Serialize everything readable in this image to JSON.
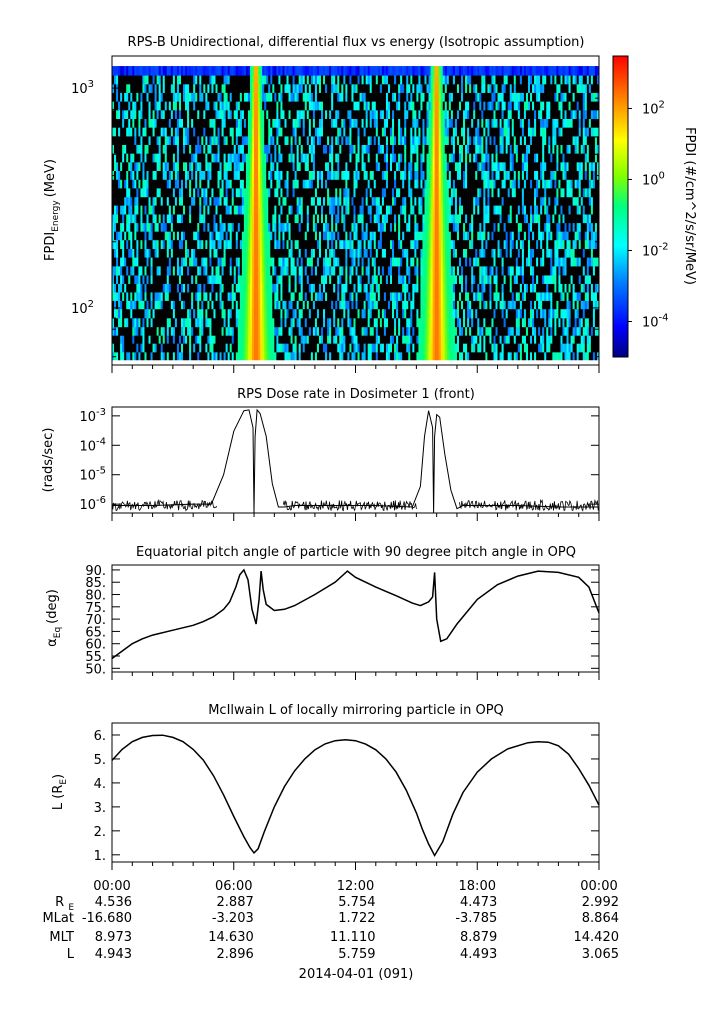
{
  "figure": {
    "date_label": "2014-04-01 (091)",
    "ephemeris": {
      "row_labels": [
        "R_E",
        "MLat",
        "MLT",
        "L"
      ],
      "columns": [
        {
          "time": "00:00",
          "values": [
            "4.536",
            "-16.680",
            "8.973",
            "4.943"
          ]
        },
        {
          "time": "06:00",
          "values": [
            "2.887",
            "-3.203",
            "14.630",
            "2.896"
          ]
        },
        {
          "time": "12:00",
          "values": [
            "5.754",
            "1.722",
            "11.110",
            "5.759"
          ]
        },
        {
          "time": "18:00",
          "values": [
            "4.473",
            "-3.785",
            "8.879",
            "4.493"
          ]
        },
        {
          "time": "00:00",
          "values": [
            "2.992",
            "8.864",
            "14.420",
            "3.065"
          ]
        }
      ]
    }
  },
  "chart_data": [
    {
      "type": "heatmap",
      "title": "RPS-B  Unidirectional, differential flux vs energy (Isotropic assumption)",
      "ylabel": "FPDI_Energy (MeV)",
      "ylabel_main": "FPDI",
      "ylabel_sub": "Energy",
      "ylabel_unit": "(MeV)",
      "x_range_hours": [
        0,
        24
      ],
      "y_range": [
        55,
        1400
      ],
      "y_scale": "log",
      "y_ticks": [
        {
          "value": 100,
          "label": "10",
          "exp": "2"
        },
        {
          "value": 1000,
          "label": "10",
          "exp": "3"
        }
      ],
      "energy_bins_mev": [
        58,
        63,
        69,
        75,
        82,
        90,
        99,
        108,
        118,
        129,
        141,
        155,
        170,
        186,
        204,
        223,
        244,
        267,
        293,
        320,
        351,
        384,
        421,
        461,
        505,
        553,
        605,
        663,
        726,
        795,
        871,
        954,
        1044,
        1144,
        1260
      ],
      "colorbar": {
        "label": "FPDI (#/cm^2/s/sr/MeV)",
        "scale": "log",
        "range": [
          1e-05,
          3000
        ],
        "ticks": [
          {
            "value": 0.0001,
            "label": "10",
            "exp": "-4"
          },
          {
            "value": 0.01,
            "label": "10",
            "exp": "-2"
          },
          {
            "value": 1,
            "label": "10",
            "exp": "0"
          },
          {
            "value": 100,
            "label": "10",
            "exp": "2"
          }
        ]
      },
      "features": [
        {
          "name": "belt-pass-1",
          "center_hours": 7.1,
          "flux_peak": 300
        },
        {
          "name": "belt-pass-2",
          "center_hours": 16.0,
          "flux_peak": 300
        }
      ],
      "background_flux": 0.01,
      "grid": false
    },
    {
      "type": "line",
      "title": "RPS  Dose rate in Dosimeter 1 (front)",
      "ylabel": "(rads/sec)",
      "y_scale": "log",
      "y_range": [
        5e-07,
        0.002
      ],
      "x_range_hours": [
        0,
        24
      ],
      "y_ticks": [
        {
          "value": 1e-06,
          "label": "10",
          "exp": "-6"
        },
        {
          "value": 1e-05,
          "label": "10",
          "exp": "-5"
        },
        {
          "value": 0.0001,
          "label": "10",
          "exp": "-4"
        },
        {
          "value": 0.001,
          "label": "10",
          "exp": "-3"
        }
      ],
      "series": [
        {
          "x": [
            0,
            2,
            4,
            4.9,
            5.5,
            6.0,
            6.5,
            6.75,
            6.95,
            7.0,
            7.05,
            7.15,
            7.3,
            7.6,
            7.9,
            8.2,
            8.5,
            9,
            11,
            13,
            14.8,
            15.2,
            15.4,
            15.6,
            15.8,
            15.85,
            15.9,
            16.0,
            16.15,
            16.4,
            16.7,
            17.0,
            17.3,
            18,
            20,
            22,
            24
          ],
          "y": [
            9e-07,
            9e-07,
            1e-06,
            1e-06,
            1e-05,
            0.0003,
            0.0015,
            0.0016,
            0.0004,
            5e-07,
            0.0002,
            0.0016,
            0.0012,
            0.0002,
            5e-06,
            8e-07,
            8e-07,
            9e-07,
            9e-07,
            9e-07,
            8e-07,
            4e-06,
            0.0002,
            0.0015,
            0.0004,
            5e-07,
            0.0002,
            0.0011,
            0.0009,
            5e-05,
            3e-06,
            7e-07,
            9e-07,
            9e-07,
            9e-07,
            8e-07,
            8e-07
          ]
        }
      ],
      "grid": false
    },
    {
      "type": "line",
      "title": "Equatorial pitch angle of particle with 90 degree pitch angle in OPQ",
      "ylabel": "α_Eq (deg)",
      "ylabel_main": "α",
      "ylabel_sub": "Eq",
      "ylabel_unit": "(deg)",
      "y_range": [
        48.5,
        92
      ],
      "x_range_hours": [
        0,
        24
      ],
      "y_ticks": [
        50,
        55,
        60,
        65,
        70,
        75,
        80,
        85,
        90
      ],
      "tick_labels": [
        "50.",
        "55.",
        "60.",
        "65.",
        "70.",
        "75.",
        "80.",
        "85.",
        "90."
      ],
      "series": [
        {
          "x": [
            0,
            0.5,
            1,
            1.5,
            2,
            3,
            4,
            4.5,
            5,
            5.5,
            5.8,
            6.1,
            6.3,
            6.5,
            6.7,
            6.9,
            7.1,
            7.25,
            7.35,
            7.45,
            7.6,
            8,
            8.5,
            9,
            10,
            11,
            11.6,
            12,
            13,
            14,
            14.8,
            15.2,
            15.6,
            15.8,
            15.9,
            16,
            16.2,
            16.5,
            17,
            18,
            19,
            20,
            21,
            22,
            23,
            23.5,
            24
          ],
          "y": [
            54,
            57,
            60,
            62,
            63.5,
            65.5,
            67.5,
            69,
            71,
            74,
            77,
            83,
            88,
            90,
            86,
            74,
            68,
            78,
            89.5,
            82,
            76,
            73.5,
            74,
            75.5,
            80,
            85,
            89.5,
            87,
            83,
            79.5,
            76.5,
            75.5,
            77,
            79,
            89,
            70,
            61,
            62,
            68,
            78,
            84,
            87.5,
            89.5,
            89,
            87,
            83,
            72.5
          ]
        }
      ],
      "grid": false
    },
    {
      "type": "line",
      "title": "McIlwain L of locally mirroring particle in OPQ",
      "ylabel": "L (R_E)",
      "ylabel_main": "L (R",
      "ylabel_sub": "E",
      "ylabel_unit": ")",
      "y_range": [
        0.7,
        6.5
      ],
      "x_range_hours": [
        0,
        24
      ],
      "y_ticks": [
        1,
        2,
        3,
        4,
        5,
        6
      ],
      "tick_labels": [
        "1.",
        "2.",
        "3.",
        "4.",
        "5.",
        "6."
      ],
      "series": [
        {
          "x": [
            0,
            0.5,
            1,
            1.5,
            2,
            2.5,
            3,
            3.5,
            4,
            4.5,
            5,
            5.5,
            6,
            6.5,
            6.8,
            7,
            7.2,
            7.5,
            8,
            8.5,
            9,
            9.5,
            10,
            10.5,
            11,
            11.5,
            12,
            12.5,
            13,
            13.5,
            14,
            14.5,
            15,
            15.3,
            15.6,
            15.9,
            16.3,
            16.8,
            17.3,
            18,
            18.7,
            19.5,
            20.5,
            21,
            21.5,
            22,
            22.5,
            23,
            23.5,
            24
          ],
          "y": [
            4.94,
            5.4,
            5.72,
            5.9,
            5.98,
            5.99,
            5.9,
            5.72,
            5.4,
            4.95,
            4.3,
            3.5,
            2.6,
            1.75,
            1.3,
            1.08,
            1.25,
            1.95,
            3.0,
            3.85,
            4.5,
            5.0,
            5.38,
            5.63,
            5.76,
            5.8,
            5.76,
            5.62,
            5.38,
            5.0,
            4.45,
            3.7,
            2.75,
            2.05,
            1.45,
            0.97,
            1.55,
            2.7,
            3.6,
            4.45,
            5.0,
            5.42,
            5.68,
            5.72,
            5.7,
            5.55,
            5.2,
            4.6,
            3.9,
            3.07
          ]
        }
      ],
      "grid": false
    }
  ],
  "colors": {
    "line": "#000000",
    "background": "#ffffff",
    "colormap": [
      "#000080",
      "#0000ff",
      "#0080ff",
      "#00ffff",
      "#00ff80",
      "#80ff00",
      "#ffff00",
      "#ff8000",
      "#ff0000"
    ]
  }
}
